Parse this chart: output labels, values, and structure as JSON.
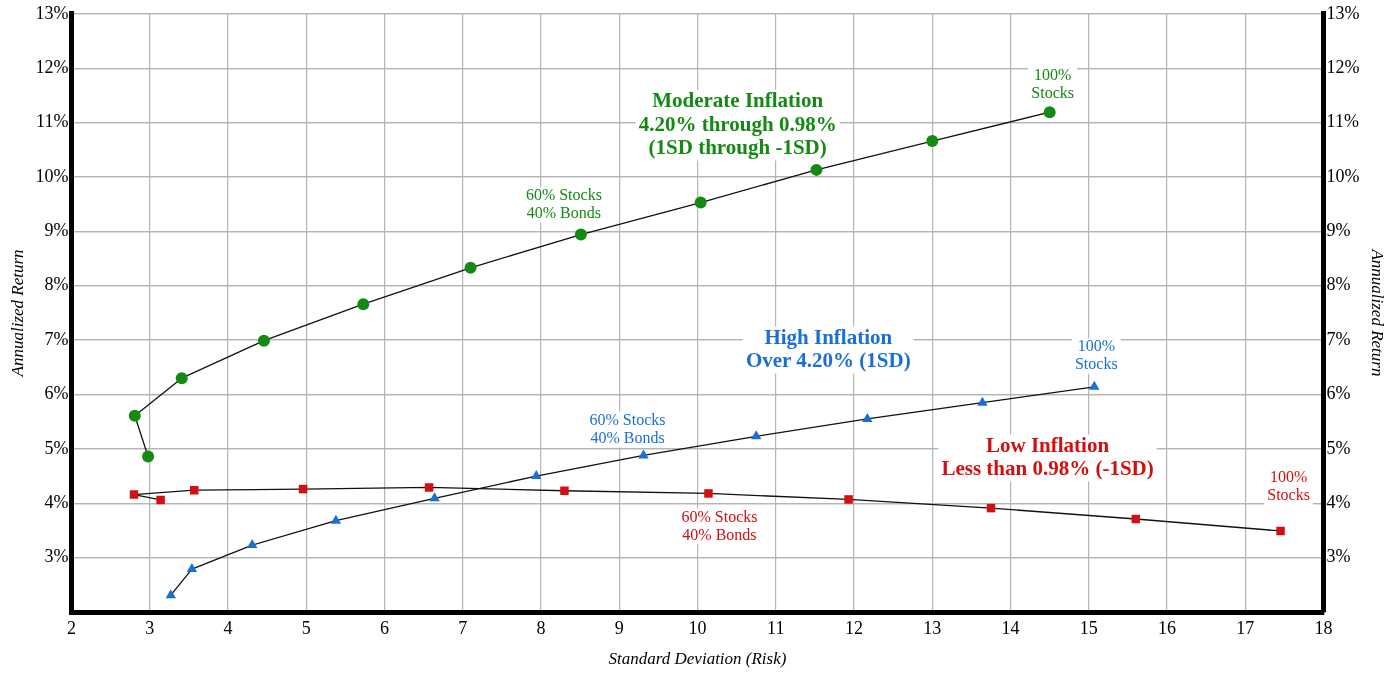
{
  "chart_data": {
    "type": "line",
    "xlabel": "Standard Deviation (Risk)",
    "ylabel": "Annualized Return",
    "y2label": "Annualized Return",
    "xlim": [
      2,
      18
    ],
    "xticks": [
      2,
      3,
      4,
      5,
      6,
      7,
      8,
      9,
      10,
      11,
      12,
      13,
      14,
      15,
      16,
      17,
      18
    ],
    "ylim": [
      2,
      13
    ],
    "yticks": [
      {
        "value": 3,
        "label": "3%"
      },
      {
        "value": 4,
        "label": "4%"
      },
      {
        "value": 5,
        "label": "5%"
      },
      {
        "value": 6,
        "label": "6%"
      },
      {
        "value": 7,
        "label": "7%"
      },
      {
        "value": 8,
        "label": "8%"
      },
      {
        "value": 9,
        "label": "9%"
      },
      {
        "value": 10,
        "label": "10%"
      },
      {
        "value": 11,
        "label": "11%"
      },
      {
        "value": 12,
        "label": "12%"
      },
      {
        "value": 13,
        "label": "13%"
      }
    ],
    "y2lim": [
      2,
      13
    ],
    "y2ticks": [
      {
        "value": 3,
        "label": "3%"
      },
      {
        "value": 4,
        "label": "4%"
      },
      {
        "value": 5,
        "label": "5%"
      },
      {
        "value": 6,
        "label": "6%"
      },
      {
        "value": 7,
        "label": "7%"
      },
      {
        "value": 8,
        "label": "8%"
      },
      {
        "value": 9,
        "label": "9%"
      },
      {
        "value": 10,
        "label": "10%"
      },
      {
        "value": 11,
        "label": "11%"
      },
      {
        "value": 12,
        "label": "12%"
      },
      {
        "value": 13,
        "label": "13%"
      }
    ],
    "grid": true,
    "legend": false,
    "line_style": "solid",
    "series": [
      {
        "name": "Moderate Inflation\n4.20% through 0.98%\n(1SD through -1SD)",
        "color": "#138a13",
        "marker": "circle",
        "x": [
          2.98,
          2.81,
          3.41,
          4.46,
          5.73,
          7.1,
          8.51,
          10.04,
          11.52,
          13.0,
          14.5
        ],
        "values": [
          4.86,
          5.61,
          6.3,
          6.99,
          7.66,
          8.33,
          8.94,
          9.53,
          10.13,
          10.66,
          11.19
        ]
      },
      {
        "name": "High Inflation\nOver 4.20% (1SD)",
        "color": "#1a6fd6",
        "marker": "triangle",
        "x": [
          3.27,
          3.54,
          4.31,
          5.38,
          6.64,
          7.94,
          9.31,
          10.75,
          12.17,
          13.64,
          15.07
        ],
        "values": [
          2.31,
          2.79,
          3.23,
          3.68,
          4.09,
          4.5,
          4.88,
          5.23,
          5.55,
          5.85,
          6.14
        ]
      },
      {
        "name": "Low Inflation\nLess than 0.98% (-1SD)",
        "color": "#d40f0f",
        "marker": "square",
        "x": [
          3.14,
          2.8,
          3.57,
          4.96,
          6.57,
          8.3,
          10.14,
          11.93,
          13.75,
          15.6,
          17.45
        ],
        "values": [
          4.06,
          4.16,
          4.24,
          4.26,
          4.29,
          4.23,
          4.18,
          4.07,
          3.91,
          3.71,
          3.49
        ]
      }
    ],
    "annotations": [
      {
        "text": "100%\nStocks",
        "x": 14.5,
        "y": 11.19
      },
      {
        "text": "60% Stocks\n40% Bonds",
        "x": 8.51,
        "y": 8.94
      },
      {
        "text": "60% Stocks\n40% Bonds",
        "x": 9.31,
        "y": 4.88
      },
      {
        "text": "100%\nStocks",
        "x": 15.07,
        "y": 6.14
      },
      {
        "text": "60% Stocks\n40% Bonds",
        "x": 10.14,
        "y": 4.18
      },
      {
        "text": "100%\nStocks",
        "x": 17.45,
        "y": 3.49
      }
    ]
  }
}
